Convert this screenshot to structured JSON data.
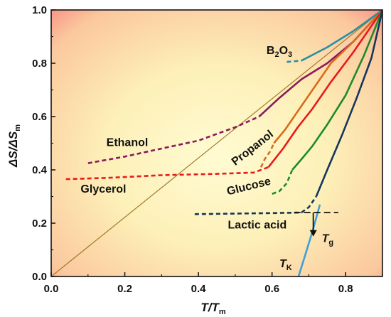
{
  "chart_data": {
    "type": "line",
    "xlabel_main": "T",
    "xlabel_sub": "m",
    "xlabel_prefix": "T/",
    "ylabel_main": "ΔS/ΔS",
    "ylabel_sub": "m",
    "xlim": [
      0.0,
      0.9
    ],
    "ylim": [
      0.0,
      1.0
    ],
    "xticks": [
      "0.0",
      "0.2",
      "0.4",
      "0.6",
      "0.8"
    ],
    "yticks": [
      "0.0",
      "0.2",
      "0.4",
      "0.6",
      "0.8",
      "1.0"
    ],
    "xtick_values": [
      0.0,
      0.2,
      0.4,
      0.6,
      0.8
    ],
    "ytick_values": [
      0.0,
      0.2,
      0.4,
      0.6,
      0.8,
      1.0
    ],
    "grid": false,
    "series": [
      {
        "name": "B2O3",
        "label_parts": [
          "B",
          "2",
          "O",
          "3"
        ],
        "color": "#2a8fa3",
        "dashed": [
          [
            0.64,
            0.805
          ],
          [
            0.68,
            0.81
          ]
        ],
        "solid": [
          [
            0.68,
            0.81
          ],
          [
            0.75,
            0.86
          ],
          [
            0.82,
            0.92
          ],
          [
            0.9,
            1.0
          ]
        ]
      },
      {
        "name": "Ethanol",
        "color": "#8b1a5c",
        "dashed": [
          [
            0.1,
            0.425
          ],
          [
            0.2,
            0.45
          ],
          [
            0.3,
            0.48
          ],
          [
            0.4,
            0.51
          ],
          [
            0.5,
            0.56
          ],
          [
            0.565,
            0.6
          ]
        ],
        "solid": [
          [
            0.565,
            0.6
          ],
          [
            0.62,
            0.67
          ],
          [
            0.68,
            0.74
          ],
          [
            0.75,
            0.8
          ],
          [
            0.82,
            0.88
          ],
          [
            0.9,
            1.0
          ]
        ]
      },
      {
        "name": "Propanol",
        "color": "#d86b1c",
        "dashed": [
          [
            0.57,
            0.41
          ],
          [
            0.58,
            0.44
          ],
          [
            0.595,
            0.47
          ],
          [
            0.605,
            0.5
          ]
        ],
        "solid": [
          [
            0.605,
            0.5
          ],
          [
            0.635,
            0.55
          ],
          [
            0.67,
            0.62
          ],
          [
            0.71,
            0.7
          ],
          [
            0.76,
            0.8
          ],
          [
            0.82,
            0.88
          ],
          [
            0.9,
            1.0
          ]
        ]
      },
      {
        "name": "Glycerol",
        "color": "#e81a1a",
        "dashed": [
          [
            0.04,
            0.365
          ],
          [
            0.15,
            0.37
          ],
          [
            0.3,
            0.38
          ],
          [
            0.45,
            0.385
          ],
          [
            0.55,
            0.39
          ],
          [
            0.59,
            0.41
          ]
        ],
        "solid": [
          [
            0.59,
            0.41
          ],
          [
            0.63,
            0.48
          ],
          [
            0.67,
            0.56
          ],
          [
            0.71,
            0.63
          ],
          [
            0.76,
            0.73
          ],
          [
            0.82,
            0.84
          ],
          [
            0.9,
            1.0
          ]
        ]
      },
      {
        "name": "Glucose",
        "color": "#1e8a2a",
        "dashed": [
          [
            0.6,
            0.31
          ],
          [
            0.62,
            0.32
          ],
          [
            0.64,
            0.35
          ],
          [
            0.655,
            0.4
          ]
        ],
        "solid": [
          [
            0.655,
            0.4
          ],
          [
            0.68,
            0.44
          ],
          [
            0.71,
            0.49
          ],
          [
            0.75,
            0.57
          ],
          [
            0.8,
            0.68
          ],
          [
            0.85,
            0.83
          ],
          [
            0.9,
            1.0
          ]
        ]
      },
      {
        "name": "Lactic acid",
        "color": "#14365e",
        "dashed": [
          [
            0.39,
            0.234
          ],
          [
            0.5,
            0.236
          ],
          [
            0.6,
            0.238
          ],
          [
            0.68,
            0.24
          ],
          [
            0.7,
            0.26
          ],
          [
            0.72,
            0.3
          ]
        ],
        "solid": [
          [
            0.72,
            0.3
          ],
          [
            0.75,
            0.4
          ],
          [
            0.79,
            0.53
          ],
          [
            0.83,
            0.67
          ],
          [
            0.87,
            0.82
          ],
          [
            0.9,
            1.0
          ]
        ]
      },
      {
        "name": "T_K extrapolation",
        "color": "#3da0dc",
        "dashed": [],
        "solid": [
          [
            0.672,
            0.0
          ],
          [
            0.69,
            0.08
          ],
          [
            0.71,
            0.17
          ],
          [
            0.73,
            0.27
          ]
        ]
      }
    ],
    "reference_line": {
      "color": "#a0782a",
      "from": [
        0.0,
        0.0
      ],
      "to": [
        0.9,
        1.0
      ]
    },
    "tg_line": {
      "color": "#111111",
      "dashed": true,
      "from": [
        0.66,
        0.24
      ],
      "to": [
        0.78,
        0.24
      ]
    },
    "tg_arrow": {
      "x": 0.712,
      "from_y": 0.24,
      "to_y": 0.15
    },
    "labels": [
      {
        "text": "Ethanol",
        "x": 0.15,
        "y": 0.49
      },
      {
        "text": "Glycerol",
        "x": 0.08,
        "y": 0.315
      },
      {
        "text": "Propanol",
        "x": 0.5,
        "y": 0.415,
        "angle": -38
      },
      {
        "text": "Glucose",
        "x": 0.48,
        "y": 0.305,
        "angle": -14
      },
      {
        "text": "Lactic acid",
        "x": 0.48,
        "y": 0.18
      },
      {
        "text_main": "T",
        "text_sub": "g",
        "x": 0.735,
        "y": 0.13
      },
      {
        "text_main": "T",
        "text_sub": "K",
        "x": 0.62,
        "y": 0.035
      }
    ],
    "b2o3_label": {
      "x": 0.585,
      "y": 0.835
    }
  }
}
